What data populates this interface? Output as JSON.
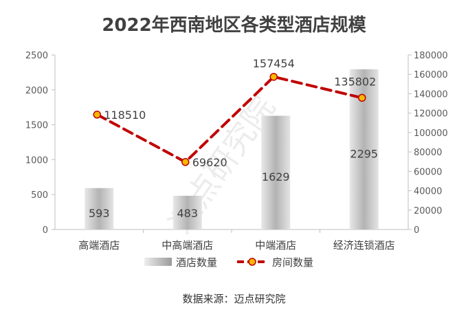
{
  "watermark": "迈点研究院",
  "source_text": "数据来源：迈点研究院",
  "colors": {
    "bar": "#b3b3b3",
    "line": "#c00000",
    "marker_fill": "#f5b800",
    "text": "#404040",
    "axis": "#bfbfbf"
  },
  "chart_data": {
    "type": "bar",
    "title": "2022年西南地区各类型酒店规模",
    "categories": [
      "高端酒店",
      "中高端酒店",
      "中端酒店",
      "经济连锁酒店"
    ],
    "series": [
      {
        "name": "酒店数量",
        "type": "bar",
        "axis": "left",
        "values": [
          593,
          483,
          1629,
          2295
        ]
      },
      {
        "name": "房间数量",
        "type": "line",
        "axis": "right",
        "values": [
          118510,
          69620,
          157454,
          135802
        ]
      }
    ],
    "y_left": {
      "min": 0,
      "max": 2500,
      "ticks": [
        "0",
        "500",
        "1000",
        "1500",
        "2000",
        "2500"
      ]
    },
    "y_right": {
      "min": 0,
      "max": 180000,
      "ticks": [
        "0",
        "20000",
        "40000",
        "60000",
        "80000",
        "100000",
        "120000",
        "140000",
        "160000",
        "180000"
      ]
    },
    "legend_position": "bottom",
    "grid": false
  }
}
